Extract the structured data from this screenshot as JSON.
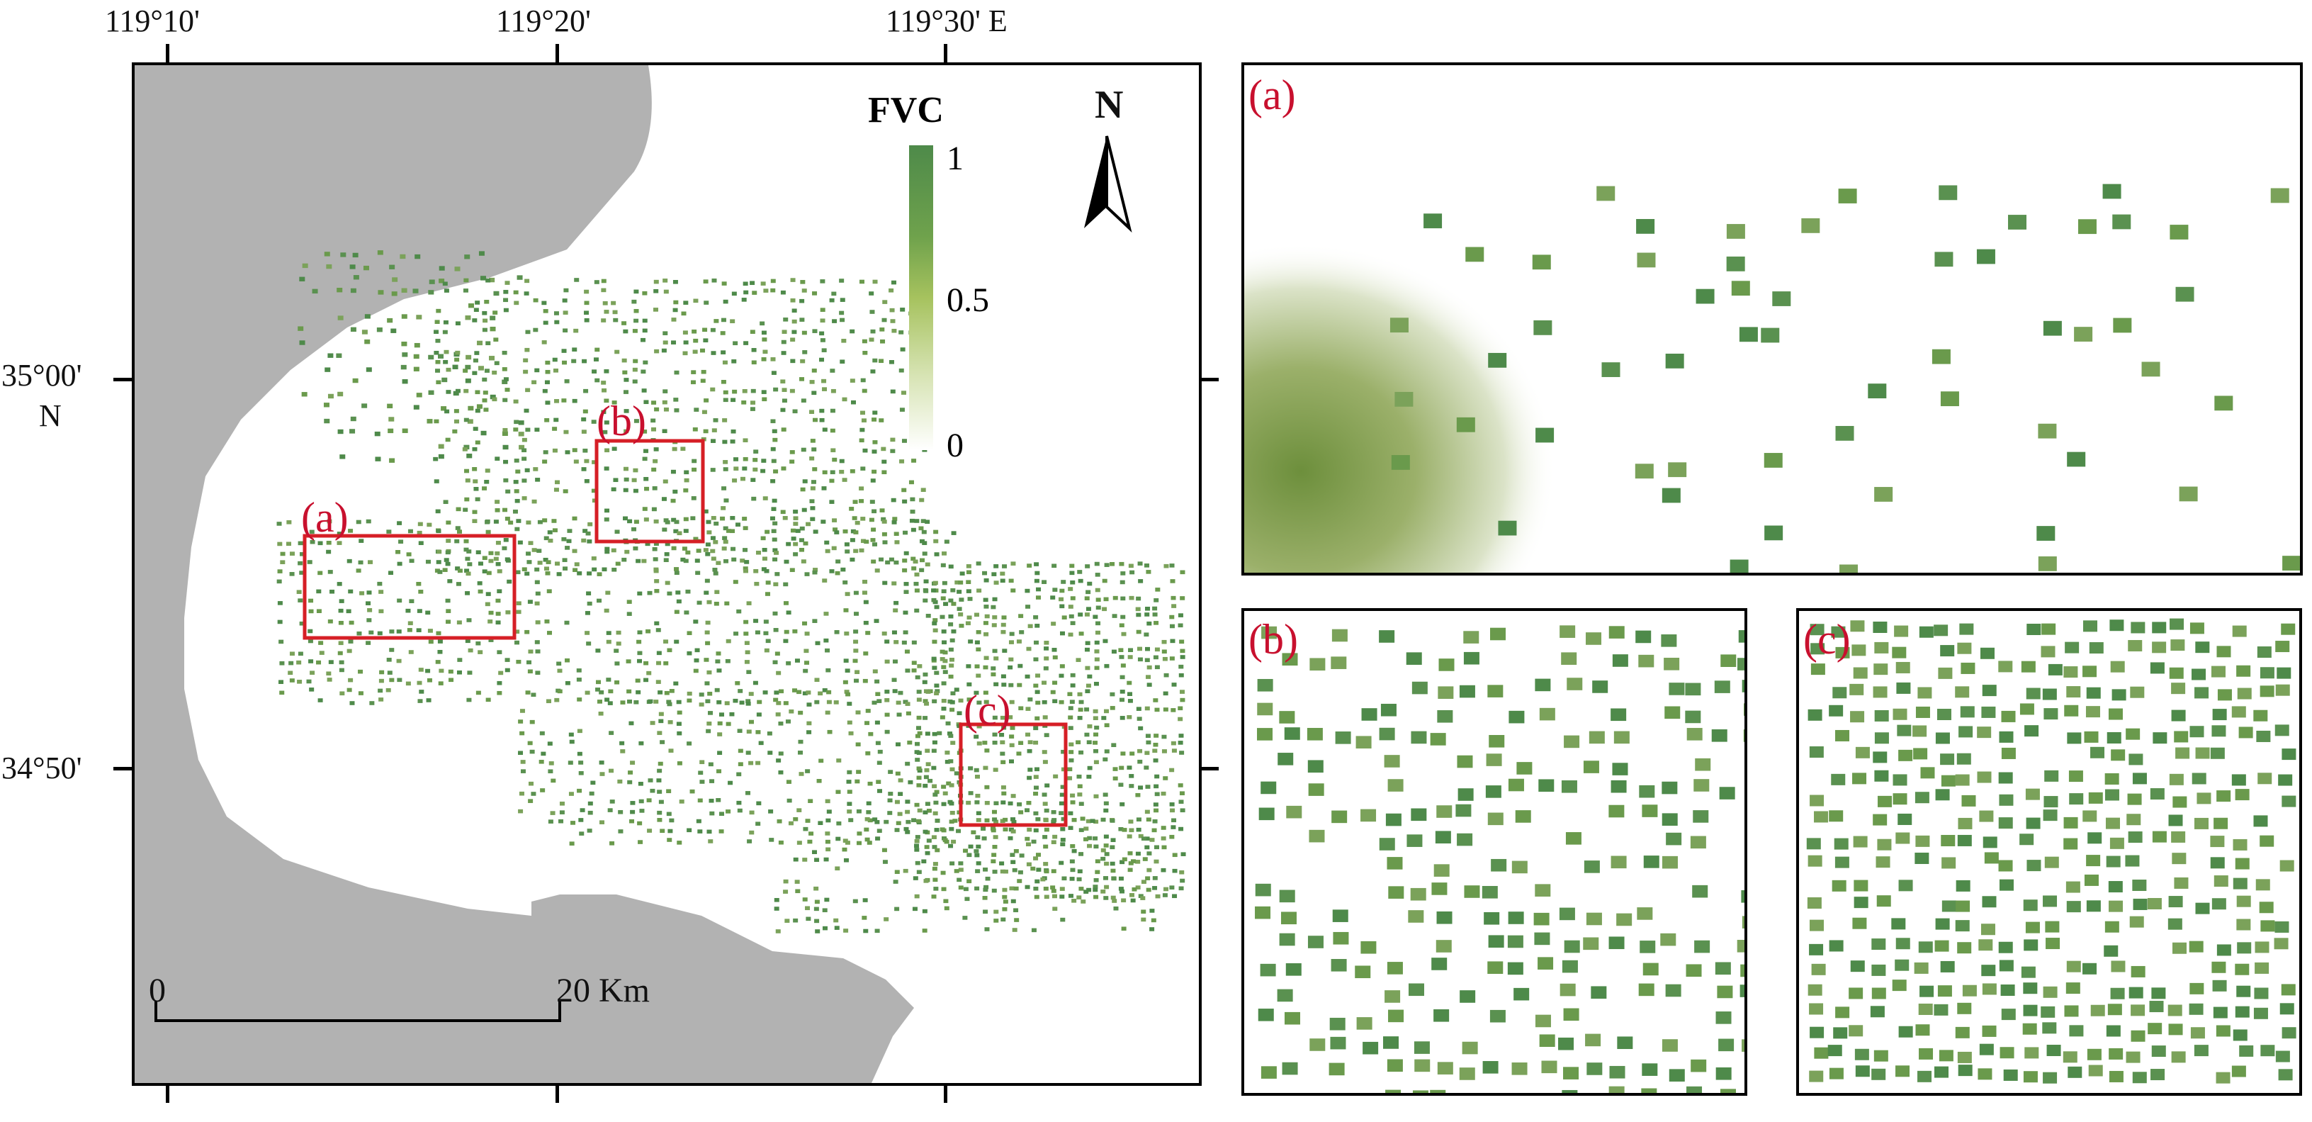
{
  "lon_labels": [
    "119°10'",
    "119°20'",
    "119°30' E"
  ],
  "lat_labels": [
    "35°00'",
    "N",
    "34°50'"
  ],
  "legend": {
    "title": "FVC",
    "max": "1",
    "mid": "0.5",
    "min": "0"
  },
  "north_arrow": {
    "letter": "N",
    "icon": "north-arrow-icon"
  },
  "scale_bar": {
    "start": "0",
    "end": "20 Km"
  },
  "zones": [
    {
      "id": "a",
      "label": "(a)"
    },
    {
      "id": "b",
      "label": "(b)"
    },
    {
      "id": "c",
      "label": "(c)"
    }
  ],
  "insets": [
    {
      "id": "a",
      "label": "(a)"
    },
    {
      "id": "b",
      "label": "(b)"
    },
    {
      "id": "c",
      "label": "(c)"
    }
  ],
  "colors": {
    "sea": "#b2b2b2",
    "vegetation_high": "#4e8a4a",
    "vegetation_mid": "#a6c25e",
    "vegetation_low": "#ffffff",
    "zone_outline": "#d61f26",
    "label_red": "#c8102e"
  }
}
